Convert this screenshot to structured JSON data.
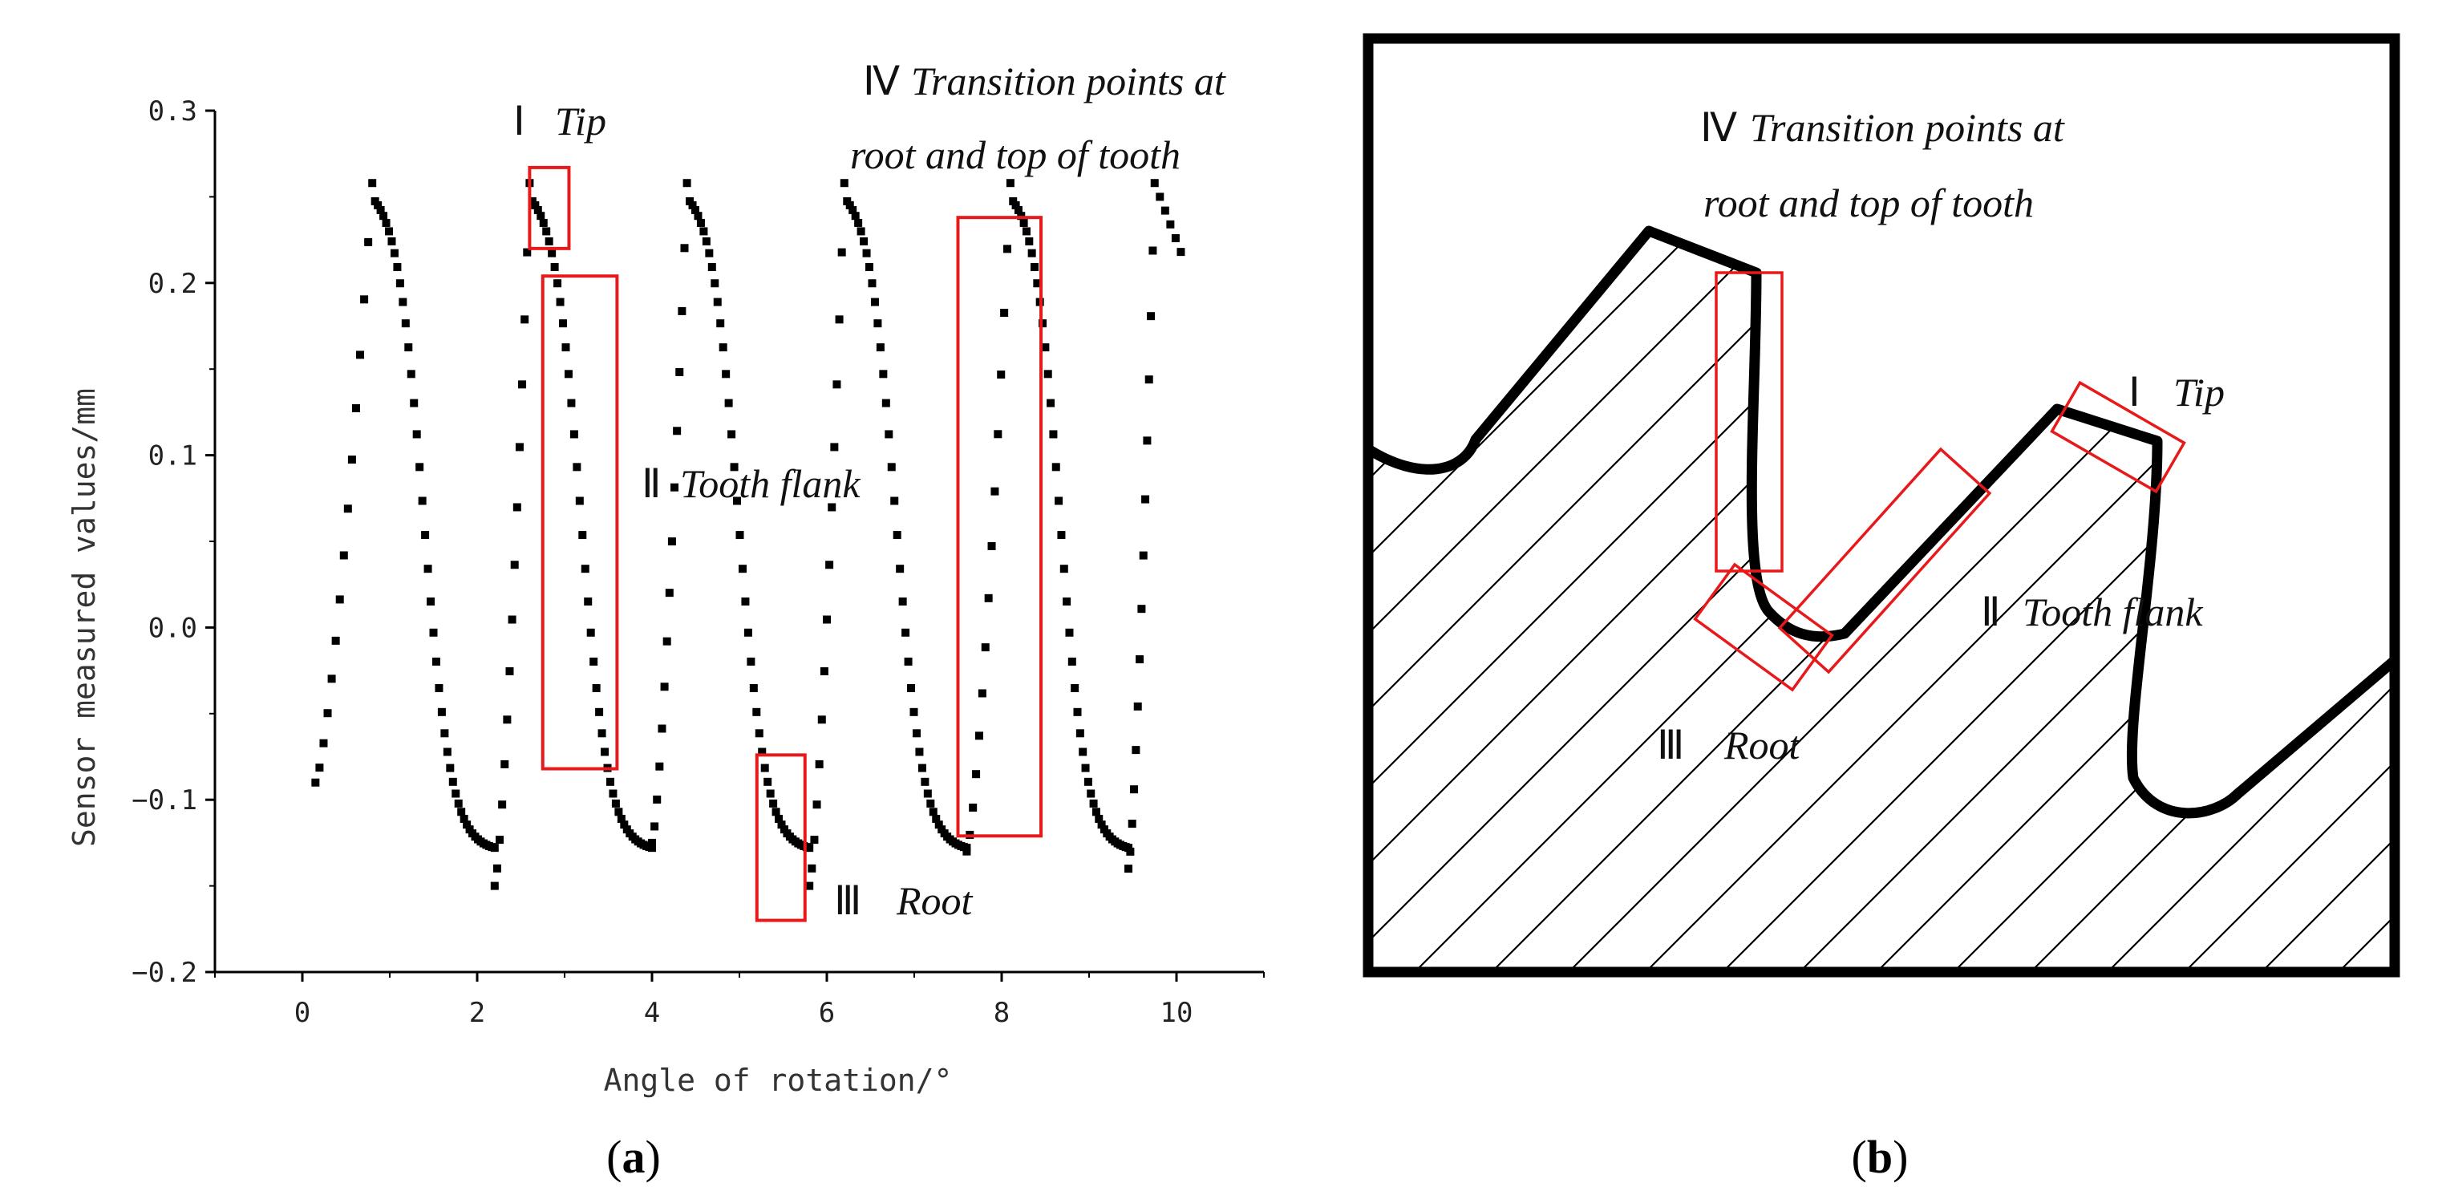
{
  "chart_data": {
    "type": "scatter",
    "xlabel": "Angle of rotation/°",
    "ylabel": "Sensor measured values/mm",
    "xlim": [
      -1,
      11
    ],
    "ylim": [
      -0.2,
      0.3
    ],
    "xticks": [
      0,
      2,
      4,
      6,
      8,
      10
    ],
    "yticks": [
      -0.2,
      -0.1,
      0.0,
      0.1,
      0.2,
      0.3
    ],
    "xtick_labels": [
      "0",
      "2",
      "4",
      "6",
      "8",
      "10"
    ],
    "ytick_labels": [
      "−0.2",
      "−0.1",
      "0.0",
      "0.1",
      "0.2",
      "0.3"
    ],
    "series_description": "periodic tooth profile measurements",
    "teeth": [
      {
        "rise_start": 0.15,
        "rise_end": 0.8,
        "peak": 0.8,
        "fall_end": 2.2,
        "low_start": -0.09
      },
      {
        "rise_start": 2.2,
        "rise_end": 2.6,
        "peak": 2.6,
        "fall_end": 4.0,
        "low_start": -0.15
      },
      {
        "rise_start": 4.0,
        "rise_end": 4.4,
        "peak": 4.4,
        "fall_end": 5.8,
        "low_start": -0.125
      },
      {
        "rise_start": 5.8,
        "rise_end": 6.2,
        "peak": 6.2,
        "fall_end": 7.6,
        "low_start": -0.15
      },
      {
        "rise_start": 7.6,
        "rise_end": 8.1,
        "peak": 8.1,
        "fall_end": 9.45,
        "low_start": -0.13
      },
      {
        "rise_start": 9.45,
        "rise_end": 9.75,
        "peak": 9.75,
        "fall_end": 10.1,
        "low_start": -0.14
      }
    ],
    "peak_value": 0.258,
    "trough_value": -0.13,
    "annotations_a": [
      {
        "numeral": "Ⅰ",
        "text": "Tip",
        "box": {
          "x0": 2.6,
          "x1": 3.05,
          "y0": 0.22,
          "y1": 0.267
        }
      },
      {
        "numeral": "Ⅱ",
        "text": "Tooth flank",
        "box": {
          "x0": 2.75,
          "x1": 3.6,
          "y0": -0.082,
          "y1": 0.204
        }
      },
      {
        "numeral": "Ⅲ",
        "text": "Root",
        "box": {
          "x0": 5.2,
          "x1": 5.75,
          "y0": -0.17,
          "y1": -0.074
        }
      },
      {
        "numeral": "Ⅳ",
        "text_line1": "Transition points at",
        "text_line2": "root and top of tooth",
        "box": {
          "x0": 7.5,
          "x1": 8.45,
          "y0": -0.121,
          "y1": 0.238
        }
      }
    ]
  },
  "diagram_b": {
    "annotations": [
      {
        "numeral": "Ⅰ",
        "text": "Tip"
      },
      {
        "numeral": "Ⅱ",
        "text": "Tooth flank"
      },
      {
        "numeral": "Ⅲ",
        "text": "Root"
      },
      {
        "numeral": "Ⅳ",
        "text_line1": "Transition points at",
        "text_line2": "root and top of tooth"
      }
    ]
  },
  "panel_labels": {
    "a": "(a)",
    "b": "(b)"
  },
  "colors": {
    "marker": "#000000",
    "highlight_box": "#e8191a",
    "frame": "#000000"
  }
}
